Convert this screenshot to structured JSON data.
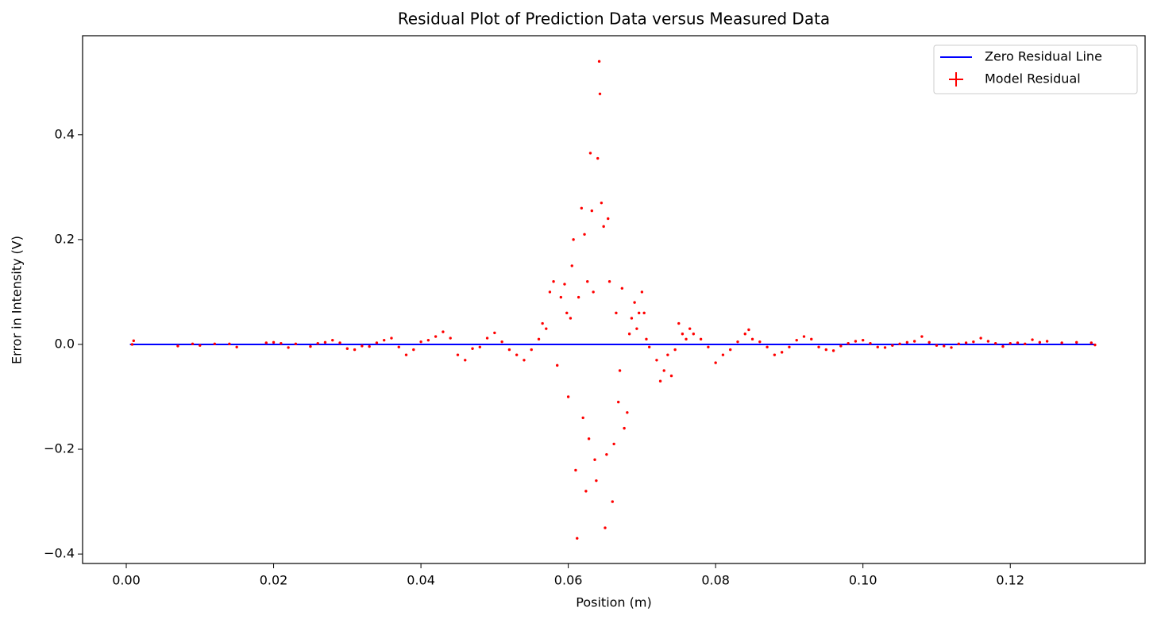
{
  "chart_data": {
    "type": "scatter",
    "title": "Residual Plot of Prediction Data versus Measured Data",
    "x_label": "Position (m)",
    "y_label": "Error in Intensity (V)",
    "xlim": [
      -0.00593,
      0.1383
    ],
    "ylim": [
      -0.418,
      0.589
    ],
    "xticks": [
      {
        "value": 0,
        "label": "0.00"
      },
      0.02,
      0.04,
      0.06,
      0.08,
      {
        "value": 0.1,
        "label": "0.10"
      },
      0.12
    ],
    "yticks": [
      {
        "value": -0.4,
        "label": "−0.4"
      },
      {
        "value": -0.2,
        "label": "−0.2"
      },
      {
        "value": 0,
        "label": "0.0"
      },
      0.2,
      0.4
    ],
    "legend": "upper right",
    "series": [
      {
        "name": "Zero Residual Line",
        "type": "line",
        "color": "#0000ff",
        "x": [
          0.0005,
          0.1315
        ],
        "y": [
          0,
          0
        ]
      },
      {
        "name": "Model Residual",
        "type": "scatter",
        "color": "#ff0000",
        "x": [
          0.0008,
          0.001,
          0.007,
          0.009,
          0.01,
          0.012,
          0.014,
          0.015,
          0.019,
          0.02,
          0.021,
          0.022,
          0.023,
          0.025,
          0.026,
          0.027,
          0.028,
          0.029,
          0.03,
          0.031,
          0.032,
          0.033,
          0.034,
          0.035,
          0.036,
          0.037,
          0.038,
          0.039,
          0.04,
          0.041,
          0.042,
          0.043,
          0.044,
          0.045,
          0.046,
          0.047,
          0.048,
          0.049,
          0.05,
          0.051,
          0.052,
          0.053,
          0.054,
          0.055,
          0.056,
          0.0565,
          0.057,
          0.0575,
          0.058,
          0.0585,
          0.059,
          0.0595,
          0.0598,
          0.06,
          0.0603,
          0.0605,
          0.0607,
          0.061,
          0.0612,
          0.0614,
          0.0618,
          0.062,
          0.0622,
          0.0624,
          0.0626,
          0.0628,
          0.063,
          0.0632,
          0.0634,
          0.0636,
          0.0638,
          0.064,
          0.0642,
          0.0643,
          0.0645,
          0.0648,
          0.065,
          0.0652,
          0.0654,
          0.0656,
          0.066,
          0.0662,
          0.0665,
          0.0668,
          0.067,
          0.0673,
          0.0676,
          0.068,
          0.0683,
          0.0686,
          0.069,
          0.0693,
          0.0696,
          0.07,
          0.0703,
          0.0706,
          0.071,
          0.072,
          0.0725,
          0.073,
          0.0735,
          0.074,
          0.0745,
          0.075,
          0.0755,
          0.076,
          0.0765,
          0.077,
          0.078,
          0.079,
          0.08,
          0.081,
          0.082,
          0.083,
          0.084,
          0.0845,
          0.085,
          0.086,
          0.087,
          0.088,
          0.089,
          0.09,
          0.091,
          0.092,
          0.093,
          0.094,
          0.095,
          0.096,
          0.097,
          0.098,
          0.099,
          0.1,
          0.101,
          0.102,
          0.103,
          0.104,
          0.105,
          0.106,
          0.107,
          0.108,
          0.109,
          0.11,
          0.111,
          0.112,
          0.113,
          0.114,
          0.115,
          0.116,
          0.117,
          0.118,
          0.119,
          0.12,
          0.121,
          0.122,
          0.123,
          0.124,
          0.125,
          0.127,
          0.129,
          0.131,
          0.1315
        ],
        "y": [
          0,
          0.007,
          -0.003,
          0.001,
          -0.002,
          0.001,
          0.001,
          -0.005,
          0.003,
          0.004,
          0.002,
          -0.006,
          0.001,
          -0.004,
          0.002,
          0.004,
          0.008,
          0.003,
          -0.008,
          -0.01,
          -0.003,
          -0.004,
          0.003,
          0.008,
          0.012,
          -0.005,
          -0.02,
          -0.01,
          0.005,
          0.008,
          0.015,
          0.024,
          0.012,
          -0.02,
          -0.03,
          -0.008,
          -0.005,
          0.012,
          0.022,
          0.005,
          -0.01,
          -0.02,
          -0.03,
          -0.01,
          0.01,
          0.04,
          0.03,
          0.1,
          0.12,
          -0.04,
          0.09,
          0.115,
          0.06,
          -0.1,
          0.05,
          0.15,
          0.2,
          -0.24,
          -0.37,
          0.09,
          0.26,
          -0.14,
          0.21,
          -0.28,
          0.12,
          -0.18,
          0.365,
          0.255,
          0.1,
          -0.22,
          -0.26,
          0.355,
          0.54,
          0.478,
          0.27,
          0.225,
          -0.35,
          -0.21,
          0.24,
          0.12,
          -0.3,
          -0.19,
          0.06,
          -0.11,
          -0.05,
          0.107,
          -0.16,
          -0.13,
          0.02,
          0.05,
          0.08,
          0.03,
          0.06,
          0.1,
          0.06,
          0.01,
          -0.005,
          -0.03,
          -0.07,
          -0.05,
          -0.02,
          -0.06,
          -0.01,
          0.04,
          0.02,
          0.01,
          0.03,
          0.02,
          0.01,
          -0.005,
          -0.035,
          -0.02,
          -0.01,
          0.005,
          0.02,
          0.028,
          0.01,
          0.005,
          -0.005,
          -0.02,
          -0.015,
          -0.005,
          0.008,
          0.015,
          0.01,
          -0.005,
          -0.01,
          -0.012,
          -0.003,
          0.002,
          0.006,
          0.008,
          0.002,
          -0.005,
          -0.006,
          -0.002,
          0.001,
          0.004,
          0.006,
          0.015,
          0.004,
          -0.002,
          -0.003,
          -0.006,
          0.001,
          0.003,
          0.005,
          0.012,
          0.006,
          0.002,
          -0.004,
          0.002,
          0.003,
          0.001,
          0.009,
          0.004,
          0.006,
          0.003,
          0.004,
          0.003,
          -0.001
        ]
      }
    ]
  }
}
